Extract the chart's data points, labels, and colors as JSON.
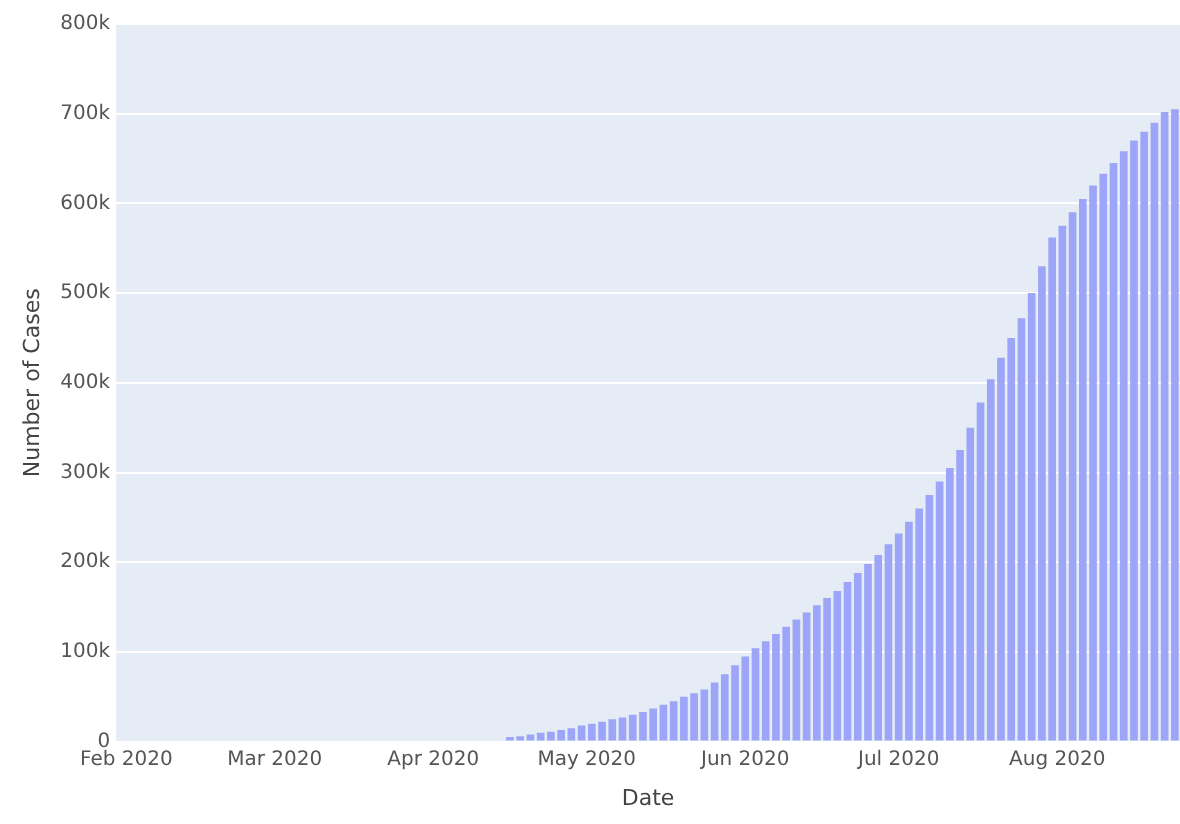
{
  "chart_data": {
    "type": "bar",
    "xlabel": "Date",
    "ylabel": "Number of Cases",
    "x": [
      "2020-04-16",
      "2020-04-18",
      "2020-04-20",
      "2020-04-22",
      "2020-04-24",
      "2020-04-26",
      "2020-04-28",
      "2020-04-30",
      "2020-05-02",
      "2020-05-04",
      "2020-05-06",
      "2020-05-08",
      "2020-05-10",
      "2020-05-12",
      "2020-05-14",
      "2020-05-16",
      "2020-05-18",
      "2020-05-20",
      "2020-05-22",
      "2020-05-24",
      "2020-05-26",
      "2020-05-28",
      "2020-05-30",
      "2020-06-01",
      "2020-06-03",
      "2020-06-05",
      "2020-06-07",
      "2020-06-09",
      "2020-06-11",
      "2020-06-13",
      "2020-06-15",
      "2020-06-17",
      "2020-06-19",
      "2020-06-21",
      "2020-06-23",
      "2020-06-25",
      "2020-06-27",
      "2020-06-29",
      "2020-07-01",
      "2020-07-03",
      "2020-07-05",
      "2020-07-07",
      "2020-07-09",
      "2020-07-11",
      "2020-07-13",
      "2020-07-15",
      "2020-07-17",
      "2020-07-19",
      "2020-07-21",
      "2020-07-23",
      "2020-07-25",
      "2020-07-27",
      "2020-07-29",
      "2020-07-31",
      "2020-08-02",
      "2020-08-04",
      "2020-08-06",
      "2020-08-08",
      "2020-08-10",
      "2020-08-12",
      "2020-08-14",
      "2020-08-16",
      "2020-08-18",
      "2020-08-20",
      "2020-08-22",
      "2020-08-24"
    ],
    "values": [
      5000,
      6000,
      8000,
      10000,
      11000,
      13000,
      15000,
      18000,
      20000,
      22000,
      25000,
      27000,
      30000,
      33000,
      37000,
      41000,
      45000,
      50000,
      54000,
      58000,
      66000,
      75000,
      85000,
      95000,
      104000,
      112000,
      120000,
      128000,
      136000,
      144000,
      152000,
      160000,
      168000,
      178000,
      188000,
      198000,
      208000,
      220000,
      232000,
      245000,
      260000,
      275000,
      290000,
      305000,
      325000,
      350000,
      378000,
      404000,
      428000,
      450000,
      472000,
      500000,
      530000,
      562000,
      575000,
      590000,
      605000,
      620000,
      633000,
      645000,
      658000,
      670000,
      680000,
      690000,
      702000,
      705000
    ],
    "color": "#9da5f8",
    "xlim": [
      "2020-01-30",
      "2020-08-25"
    ],
    "xticks": [
      {
        "value": "2020-02-01",
        "label": "Feb 2020"
      },
      {
        "value": "2020-03-01",
        "label": "Mar 2020"
      },
      {
        "value": "2020-04-01",
        "label": "Apr 2020"
      },
      {
        "value": "2020-05-01",
        "label": "May 2020"
      },
      {
        "value": "2020-06-01",
        "label": "Jun 2020"
      },
      {
        "value": "2020-07-01",
        "label": "Jul 2020"
      },
      {
        "value": "2020-08-01",
        "label": "Aug 2020"
      }
    ],
    "ylim": [
      0,
      800000
    ],
    "yticks": [
      0,
      {
        "value": 100000,
        "label": "100k"
      },
      {
        "value": 200000,
        "label": "200k"
      },
      {
        "value": 300000,
        "label": "300k"
      },
      {
        "value": 400000,
        "label": "400k"
      },
      {
        "value": 500000,
        "label": "500k"
      },
      {
        "value": 600000,
        "label": "600k"
      },
      {
        "value": 700000,
        "label": "700k"
      },
      {
        "value": 800000,
        "label": "800k"
      }
    ],
    "grid": "y",
    "legend": false
  }
}
